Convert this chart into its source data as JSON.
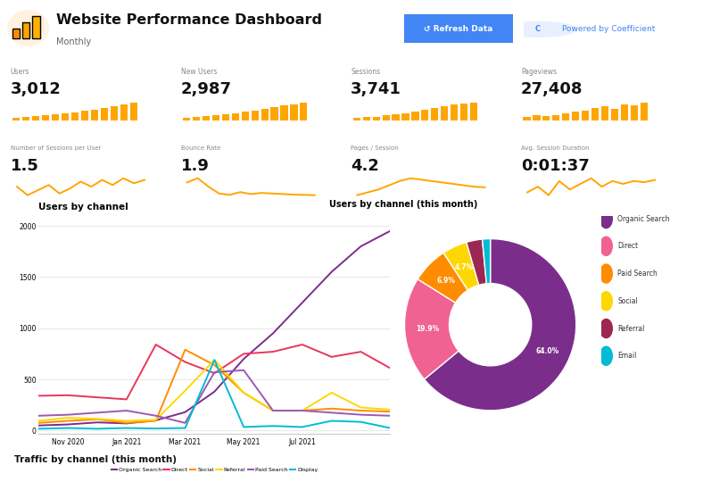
{
  "title": "Website Performance Dashboard",
  "subtitle": "Monthly",
  "bg_color": "#ffffff",
  "metrics_row1": [
    {
      "label": "Users",
      "value": "3,012"
    },
    {
      "label": "New Users",
      "value": "2,987"
    },
    {
      "label": "Sessions",
      "value": "3,741"
    },
    {
      "label": "Pageviews",
      "value": "27,408"
    }
  ],
  "metrics_row2": [
    {
      "label": "Number of Sessions per User",
      "value": "1.5"
    },
    {
      "label": "Bounce Rate",
      "value": "1.9"
    },
    {
      "label": "Pages / Session",
      "value": "4.2"
    },
    {
      "label": "Avg. Session Duration",
      "value": "0:01:37"
    }
  ],
  "bar_sparklines": [
    [
      0.15,
      0.18,
      0.22,
      0.28,
      0.32,
      0.38,
      0.45,
      0.52,
      0.6,
      0.7,
      0.8,
      0.88,
      1.0
    ],
    [
      0.15,
      0.18,
      0.22,
      0.28,
      0.33,
      0.4,
      0.47,
      0.55,
      0.63,
      0.72,
      0.82,
      0.9,
      1.0
    ],
    [
      0.12,
      0.16,
      0.2,
      0.26,
      0.32,
      0.4,
      0.5,
      0.6,
      0.7,
      0.8,
      0.88,
      0.95,
      1.0
    ],
    [
      0.2,
      0.28,
      0.22,
      0.3,
      0.38,
      0.48,
      0.55,
      0.7,
      0.8,
      0.62,
      0.88,
      0.82,
      1.0
    ]
  ],
  "line_sparklines": [
    [
      0.55,
      0.3,
      0.45,
      0.6,
      0.35,
      0.5,
      0.7,
      0.55,
      0.75,
      0.6,
      0.8,
      0.65,
      0.75
    ],
    [
      0.7,
      0.85,
      0.55,
      0.3,
      0.25,
      0.35,
      0.28,
      0.32,
      0.3,
      0.28,
      0.26,
      0.25,
      0.24
    ],
    [
      0.2,
      0.3,
      0.4,
      0.55,
      0.7,
      0.8,
      0.75,
      0.7,
      0.65,
      0.6,
      0.55,
      0.5,
      0.48
    ],
    [
      0.5,
      0.6,
      0.45,
      0.7,
      0.55,
      0.65,
      0.75,
      0.6,
      0.7,
      0.65,
      0.7,
      0.68,
      0.72
    ]
  ],
  "sparkline_color": "#FFA500",
  "chart_title": "Users by channel",
  "chart_yticks": [
    0,
    500,
    1000,
    1500,
    2000
  ],
  "line_data": {
    "Organic Search": [
      50,
      60,
      80,
      70,
      100,
      180,
      380,
      700,
      950,
      1250,
      1550,
      1800,
      1950
    ],
    "Direct": [
      340,
      345,
      325,
      305,
      840,
      670,
      560,
      750,
      770,
      840,
      720,
      770,
      610
    ],
    "Social": [
      75,
      95,
      110,
      75,
      95,
      790,
      640,
      370,
      195,
      195,
      215,
      195,
      185
    ],
    "Referral": [
      95,
      125,
      115,
      95,
      105,
      390,
      690,
      370,
      195,
      195,
      370,
      225,
      205
    ],
    "Paid Search": [
      145,
      155,
      175,
      195,
      145,
      75,
      570,
      590,
      195,
      195,
      175,
      155,
      145
    ],
    "Display": [
      18,
      25,
      18,
      25,
      20,
      25,
      690,
      35,
      45,
      35,
      95,
      85,
      25
    ]
  },
  "line_colors": {
    "Organic Search": "#7B2D8B",
    "Direct": "#E8365D",
    "Social": "#FF8C00",
    "Referral": "#FFD700",
    "Paid Search": "#9B59B6",
    "Display": "#00BCD4"
  },
  "donut_title": "Users by channel (this month)",
  "donut_labels": [
    "Organic Search",
    "Direct",
    "Paid Search",
    "Social",
    "Referral",
    "Email"
  ],
  "donut_values": [
    64.0,
    19.9,
    6.9,
    4.7,
    3.0,
    1.5
  ],
  "donut_colors": [
    "#7B2D8B",
    "#F06292",
    "#FF8C00",
    "#FFD700",
    "#9C2752",
    "#00BCD4"
  ],
  "donut_pct_show": [
    true,
    true,
    true,
    true,
    false,
    false
  ],
  "donut_pct_labels": [
    "64.0%",
    "19.9%",
    "6.9%",
    "4.7%",
    "",
    ""
  ],
  "bottom_title": "Traffic by channel (this month)",
  "refresh_btn_color": "#4285F4",
  "refresh_btn_text": "↺ Refresh Data",
  "powered_text": "Powered by Coefficient",
  "powered_color": "#4285F4",
  "icon_circle_color": "#FFF3E0",
  "icon_bar_colors": [
    "#FF8C00",
    "#FFA500",
    "#FFB300"
  ]
}
